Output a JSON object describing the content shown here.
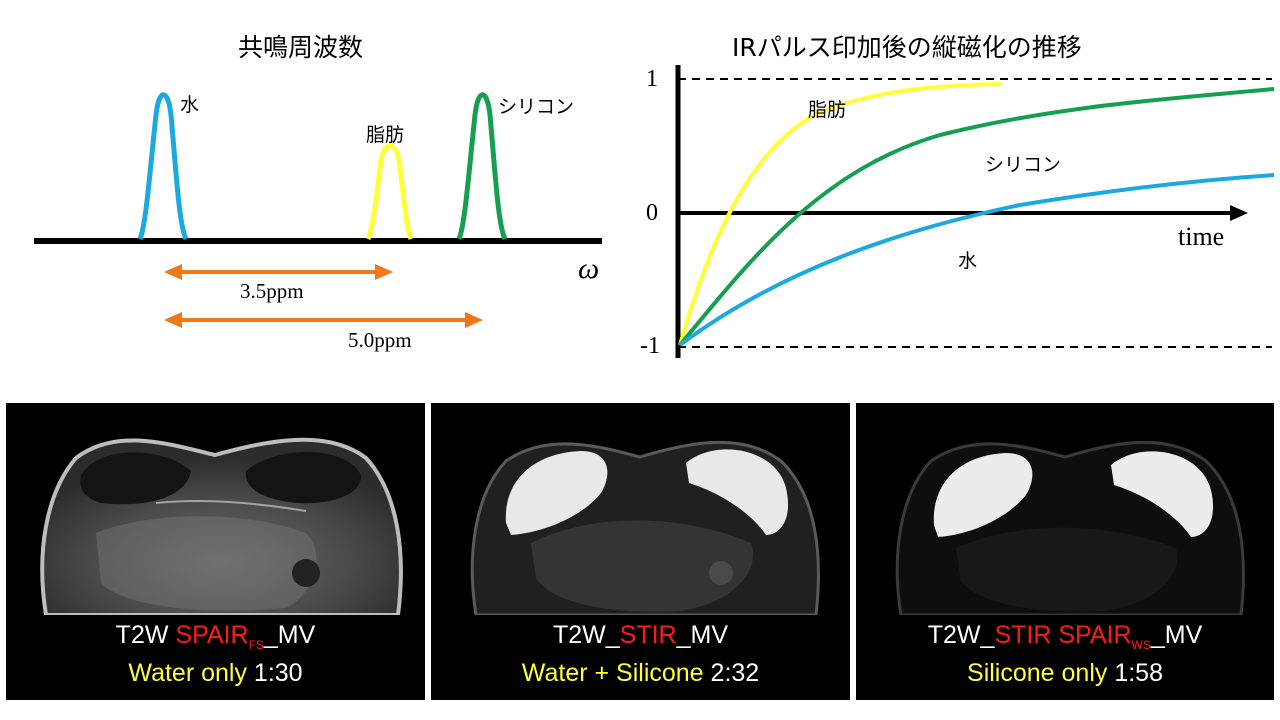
{
  "left_diagram": {
    "title": "共鳴周波数",
    "peaks": [
      {
        "label": "水",
        "color": "#1aa9e0"
      },
      {
        "label": "脂肪",
        "color": "#ffff33"
      },
      {
        "label": "シリコン",
        "color": "#14a050"
      }
    ],
    "axis_symbol": "ω",
    "arrows": [
      {
        "label": "3.5ppm"
      },
      {
        "label": "5.0ppm"
      }
    ],
    "arrow_color": "#f07818"
  },
  "right_diagram": {
    "title": "IRパルス印加後の縦磁化の推移",
    "ticks": {
      "top": "1",
      "mid": "0",
      "bottom": "-1"
    },
    "x_label": "time",
    "curves": [
      {
        "label": "脂肪",
        "color": "#ffff33"
      },
      {
        "label": "シリコン",
        "color": "#14a050"
      },
      {
        "label": "水",
        "color": "#1aa9e0"
      }
    ]
  },
  "panels": [
    {
      "seq_prefix": "T2W ",
      "seq_red": "SPAIR",
      "seq_sub": "FS",
      "seq_suffix": "_MV",
      "cap_yellow": "Water only",
      "time": " 1:30"
    },
    {
      "seq_prefix": "T2W_",
      "seq_red": "STIR",
      "seq_sub": "",
      "seq_suffix": "_MV",
      "cap_yellow": "Water + Silicone",
      "time": " 2:32"
    },
    {
      "seq_prefix": "T2W_",
      "seq_red": "STIR SPAIR",
      "seq_sub": "WS",
      "seq_suffix": "_MV",
      "cap_yellow": "Silicone only",
      "time": " 1:58"
    }
  ],
  "colors": {
    "red_text": "#ff1a1a",
    "yellow_text": "#ffff33"
  }
}
